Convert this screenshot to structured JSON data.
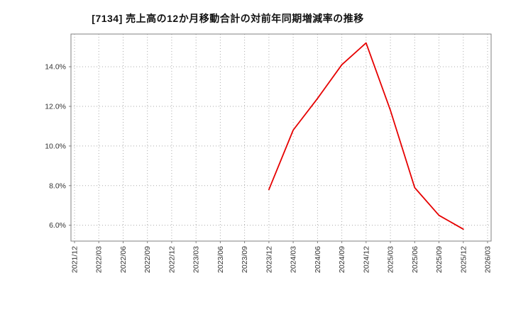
{
  "chart_data": {
    "type": "line",
    "title": "[7134]  売上高の12か月移動合計の対前年同期増減率の推移",
    "categories": [
      "2021/12",
      "2022/03",
      "2022/06",
      "2022/09",
      "2022/12",
      "2023/03",
      "2023/06",
      "2023/09",
      "2023/12",
      "2024/03",
      "2024/06",
      "2024/09",
      "2024/12",
      "2025/03",
      "2025/06",
      "2025/09",
      "2025/12",
      "2026/03"
    ],
    "series": [
      {
        "color": "#e60000",
        "values": [
          null,
          null,
          null,
          null,
          null,
          null,
          null,
          null,
          7.8,
          10.8,
          12.4,
          14.1,
          15.2,
          11.8,
          7.9,
          6.5,
          5.8,
          null
        ]
      }
    ],
    "ylim": [
      5.2,
      15.65
    ],
    "yticks": [
      6.0,
      8.0,
      10.0,
      12.0,
      14.0
    ],
    "ytick_labels": [
      "6.0%",
      "8.0%",
      "10.0%",
      "12.0%",
      "14.0%"
    ],
    "xlabel": "",
    "ylabel": "",
    "legend": "none",
    "grid": "dotted",
    "grid_color": "#aaaaaa",
    "axis_color": "#808080",
    "tick_label_color": "#333333",
    "background": "#ffffff"
  }
}
